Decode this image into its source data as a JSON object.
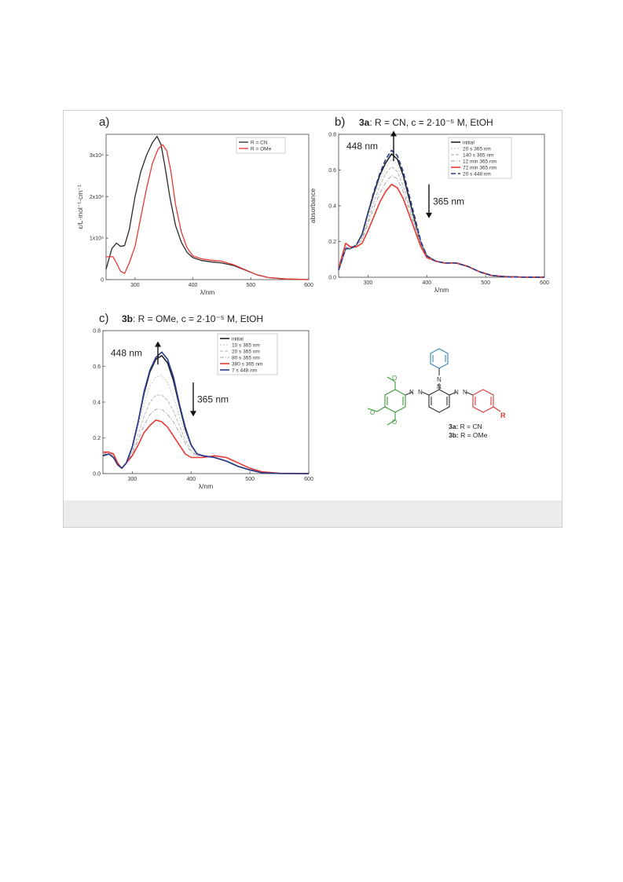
{
  "chart_data": [
    {
      "panel": "a)",
      "type": "line",
      "title": "",
      "xlabel": "λ/nm",
      "ylabel": "ε/L·mol⁻¹·cm⁻¹",
      "xlim": [
        250,
        600
      ],
      "ylim": [
        0,
        35000
      ],
      "xticks": [
        300,
        400,
        500,
        600
      ],
      "yticks": [
        {
          "value": 0,
          "label": "0"
        },
        {
          "value": 10000,
          "label": "1x10⁴"
        },
        {
          "value": 20000,
          "label": "2x10⁴"
        },
        {
          "value": 30000,
          "label": "3x10⁴"
        }
      ],
      "legend_position": "top-right",
      "series": [
        {
          "name": "R = CN",
          "color": "#2b2b2b",
          "dash": "",
          "x": [
            250,
            260,
            268,
            275,
            282,
            290,
            300,
            310,
            320,
            330,
            338,
            345,
            352,
            360,
            370,
            380,
            390,
            400,
            415,
            430,
            450,
            470,
            490,
            510,
            530,
            560,
            600
          ],
          "y": [
            2500,
            7500,
            8800,
            8000,
            8200,
            12000,
            20000,
            26000,
            30000,
            33000,
            34500,
            32500,
            27000,
            20000,
            13000,
            9000,
            6500,
            5300,
            4600,
            4300,
            4000,
            3400,
            2300,
            1200,
            500,
            150,
            0
          ]
        },
        {
          "name": "R = OMe",
          "color": "#e53935",
          "dash": "",
          "x": [
            250,
            262,
            268,
            275,
            282,
            290,
            300,
            310,
            320,
            330,
            340,
            348,
            355,
            362,
            370,
            380,
            390,
            400,
            415,
            430,
            450,
            470,
            490,
            510,
            530,
            560,
            600
          ],
          "y": [
            5500,
            5500,
            4000,
            2000,
            1500,
            4000,
            8000,
            15000,
            22000,
            28000,
            31500,
            32500,
            31000,
            26000,
            18000,
            11500,
            7600,
            5700,
            5000,
            4700,
            4400,
            3600,
            2400,
            1200,
            500,
            150,
            0
          ]
        }
      ]
    },
    {
      "panel": "b)",
      "type": "line",
      "title_bold": "3a",
      "title_rest": ": R = CN, c = 2·10⁻⁵ M, EtOH",
      "xlabel": "λ/nm",
      "ylabel": "absorbance",
      "xlim": [
        250,
        600
      ],
      "ylim": [
        0,
        0.8
      ],
      "xticks": [
        300,
        400,
        500,
        600
      ],
      "yticks": [
        {
          "value": 0,
          "label": "0.0"
        },
        {
          "value": 0.2,
          "label": "0.2"
        },
        {
          "value": 0.4,
          "label": "0.4"
        },
        {
          "value": 0.6,
          "label": "0.6"
        },
        {
          "value": 0.8,
          "label": "0.8"
        }
      ],
      "legend_position": "top-right",
      "arrow_up_label": "448 nm",
      "arrow_down_label": "365 nm",
      "x": [
        250,
        262,
        270,
        280,
        290,
        300,
        310,
        320,
        330,
        340,
        350,
        360,
        370,
        380,
        390,
        400,
        415,
        430,
        450,
        470,
        490,
        510,
        530,
        560,
        600
      ],
      "series": [
        {
          "name": "initial",
          "color": "#222222",
          "dash": "",
          "width": 1.6,
          "y": [
            0.04,
            0.16,
            0.16,
            0.18,
            0.24,
            0.36,
            0.47,
            0.57,
            0.64,
            0.69,
            0.66,
            0.57,
            0.44,
            0.31,
            0.19,
            0.12,
            0.09,
            0.08,
            0.08,
            0.06,
            0.03,
            0.01,
            0.004,
            0.001,
            0
          ]
        },
        {
          "name": "20 s 365 nm",
          "color": "#bdbdbd",
          "dash": "2,2",
          "width": 0.9,
          "y": [
            0.04,
            0.16,
            0.16,
            0.18,
            0.23,
            0.34,
            0.45,
            0.54,
            0.61,
            0.66,
            0.63,
            0.54,
            0.42,
            0.3,
            0.19,
            0.12,
            0.09,
            0.08,
            0.08,
            0.06,
            0.03,
            0.01,
            0.004,
            0.001,
            0
          ]
        },
        {
          "name": "140 s 365 nm",
          "color": "#a8a8a8",
          "dash": "4,2",
          "width": 0.9,
          "y": [
            0.04,
            0.165,
            0.16,
            0.18,
            0.22,
            0.32,
            0.42,
            0.51,
            0.58,
            0.62,
            0.59,
            0.51,
            0.4,
            0.29,
            0.19,
            0.12,
            0.09,
            0.08,
            0.08,
            0.06,
            0.03,
            0.01,
            0.004,
            0.001,
            0
          ]
        },
        {
          "name": "12 min 365 nm",
          "color": "#9a9a9a",
          "dash": "5,2,1,2",
          "width": 0.9,
          "y": [
            0.045,
            0.17,
            0.16,
            0.17,
            0.21,
            0.3,
            0.39,
            0.47,
            0.53,
            0.57,
            0.55,
            0.48,
            0.38,
            0.28,
            0.18,
            0.12,
            0.09,
            0.08,
            0.08,
            0.06,
            0.03,
            0.01,
            0.004,
            0.001,
            0
          ]
        },
        {
          "name": "72 min 365 nm",
          "color": "#e53935",
          "dash": "",
          "width": 1.6,
          "y": [
            0.05,
            0.19,
            0.17,
            0.17,
            0.19,
            0.26,
            0.34,
            0.42,
            0.48,
            0.52,
            0.5,
            0.44,
            0.35,
            0.26,
            0.17,
            0.11,
            0.09,
            0.08,
            0.08,
            0.06,
            0.03,
            0.01,
            0.004,
            0.001,
            0
          ]
        },
        {
          "name": "20 s 448 nm",
          "color": "#2b3a8c",
          "dash": "6,3",
          "width": 1.6,
          "y": [
            0.04,
            0.16,
            0.16,
            0.18,
            0.24,
            0.36,
            0.48,
            0.58,
            0.66,
            0.71,
            0.68,
            0.59,
            0.46,
            0.33,
            0.2,
            0.12,
            0.09,
            0.08,
            0.08,
            0.06,
            0.03,
            0.01,
            0.004,
            0.001,
            0
          ]
        }
      ]
    },
    {
      "panel": "c)",
      "type": "line",
      "title_bold": "3b",
      "title_rest": ": R = OMe, c = 2·10⁻⁵ M, EtOH",
      "xlabel": "λ/nm",
      "ylabel": "",
      "xlim": [
        250,
        600
      ],
      "ylim": [
        0,
        0.8
      ],
      "xticks": [
        300,
        400,
        500,
        600
      ],
      "yticks": [
        {
          "value": 0,
          "label": "0.0"
        },
        {
          "value": 0.2,
          "label": "0.2"
        },
        {
          "value": 0.4,
          "label": "0.4"
        },
        {
          "value": 0.6,
          "label": "0.6"
        },
        {
          "value": 0.8,
          "label": "0.8"
        }
      ],
      "legend_position": "top-right",
      "arrow_up_label": "448 nm",
      "arrow_down_label": "365 nm",
      "x": [
        250,
        260,
        268,
        275,
        282,
        290,
        300,
        310,
        320,
        330,
        340,
        350,
        360,
        370,
        380,
        390,
        400,
        410,
        420,
        440,
        460,
        480,
        500,
        520,
        550,
        600
      ],
      "series": [
        {
          "name": "initial",
          "color": "#222222",
          "dash": "",
          "width": 1.6,
          "y": [
            0.1,
            0.11,
            0.09,
            0.05,
            0.03,
            0.06,
            0.15,
            0.29,
            0.45,
            0.57,
            0.64,
            0.66,
            0.62,
            0.52,
            0.38,
            0.25,
            0.16,
            0.11,
            0.1,
            0.09,
            0.07,
            0.04,
            0.02,
            0.005,
            0.001,
            0
          ]
        },
        {
          "name": "10 s 365 nm",
          "color": "#bdbdbd",
          "dash": "2,2",
          "width": 0.9,
          "y": [
            0.1,
            0.11,
            0.09,
            0.05,
            0.03,
            0.06,
            0.14,
            0.26,
            0.39,
            0.49,
            0.54,
            0.55,
            0.51,
            0.43,
            0.32,
            0.22,
            0.15,
            0.11,
            0.1,
            0.09,
            0.07,
            0.04,
            0.02,
            0.005,
            0.001,
            0
          ]
        },
        {
          "name": "20 s 365 nm",
          "color": "#b0b0b0",
          "dash": "4,2",
          "width": 0.9,
          "y": [
            0.11,
            0.11,
            0.09,
            0.05,
            0.03,
            0.06,
            0.12,
            0.22,
            0.32,
            0.4,
            0.44,
            0.44,
            0.41,
            0.35,
            0.27,
            0.19,
            0.13,
            0.1,
            0.1,
            0.09,
            0.07,
            0.04,
            0.02,
            0.005,
            0.001,
            0
          ]
        },
        {
          "name": "80 s 365 nm",
          "color": "#a0a0a0",
          "dash": "5,2,1,2",
          "width": 0.9,
          "y": [
            0.11,
            0.12,
            0.1,
            0.05,
            0.03,
            0.06,
            0.11,
            0.19,
            0.27,
            0.33,
            0.36,
            0.36,
            0.33,
            0.29,
            0.23,
            0.17,
            0.12,
            0.1,
            0.1,
            0.09,
            0.07,
            0.04,
            0.02,
            0.005,
            0.001,
            0
          ]
        },
        {
          "name": "380 s 365 nm",
          "color": "#e53935",
          "dash": "",
          "width": 1.6,
          "y": [
            0.12,
            0.12,
            0.11,
            0.06,
            0.03,
            0.06,
            0.1,
            0.16,
            0.23,
            0.27,
            0.3,
            0.29,
            0.26,
            0.21,
            0.16,
            0.11,
            0.09,
            0.09,
            0.09,
            0.1,
            0.09,
            0.06,
            0.03,
            0.01,
            0.002,
            0
          ]
        },
        {
          "name": "7 s 448 nm",
          "color": "#2b3a8c",
          "dash": "",
          "width": 1.6,
          "y": [
            0.1,
            0.11,
            0.09,
            0.05,
            0.03,
            0.06,
            0.15,
            0.29,
            0.46,
            0.58,
            0.65,
            0.68,
            0.64,
            0.54,
            0.39,
            0.26,
            0.16,
            0.11,
            0.1,
            0.09,
            0.07,
            0.04,
            0.02,
            0.005,
            0.001,
            0
          ]
        }
      ]
    }
  ],
  "structure": {
    "label_3a": "3a:",
    "label_3a_rest": " R = CN",
    "label_3b": "3b:",
    "label_3b_rest": " R = OMe",
    "r_label": "R",
    "azo": "N",
    "colors": {
      "phenyl": "#3a86b8",
      "aryl_r": "#d93a3a",
      "methoxy": "#3a9a3a",
      "core": "#333333"
    }
  }
}
